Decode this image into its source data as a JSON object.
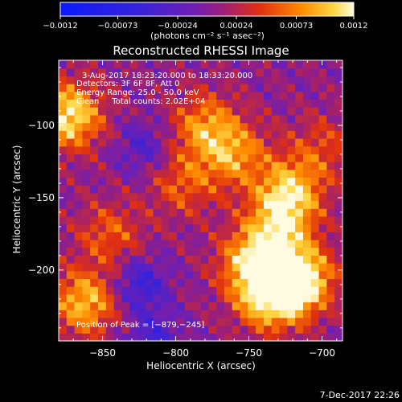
{
  "chart_data": {
    "type": "heatmap",
    "title": "Reconstructed RHESSI Image",
    "xlabel": "Heliocentric X (arcsec)",
    "ylabel": "Heliocentric Y (arcsec)",
    "xlim": [
      -880,
      -686
    ],
    "ylim": [
      -249,
      -55
    ],
    "x_ticks": [
      -850,
      -800,
      -750,
      -700
    ],
    "x_tick_labels": [
      "−850",
      "−800",
      "−750",
      "−700"
    ],
    "y_ticks": [
      -100,
      -150,
      -200
    ],
    "y_tick_labels": [
      "−100",
      "−150",
      "−200"
    ],
    "colorbar": {
      "range": [
        -0.0012,
        0.0012
      ],
      "ticks": [
        -0.0012,
        -0.00073,
        -0.00024,
        0.00024,
        0.00073,
        0.0012
      ],
      "tick_labels": [
        "−0.0012",
        "−0.00073",
        "−0.00024",
        "0.00024",
        "0.00073",
        "0.0012"
      ],
      "units_label": "(photons cm⁻² s⁻¹ asec⁻²)",
      "colormap": "RHESSI blue-purple-red-yellow"
    },
    "info_lines": [
      "3-Aug-2017 18:23:20.000 to 18:33:20.000",
      "Detectors: 3F 6F 8F, Att 0",
      "Energy Range: 25.0 - 50.0 keV",
      "Clean     Total counts: 2.02E+04"
    ],
    "peak_label": "Position of Peak = [−879,−245]",
    "image_features": [
      {
        "x": -873,
        "y": -93,
        "value": 0.0011
      },
      {
        "x": -715,
        "y": -206,
        "value": 0.0012
      },
      {
        "x": -735,
        "y": -218,
        "value": 0.0011
      },
      {
        "x": -748,
        "y": -195,
        "value": 0.0009
      },
      {
        "x": -730,
        "y": -170,
        "value": 0.0008
      },
      {
        "x": -722,
        "y": -145,
        "value": 0.0009
      },
      {
        "x": -760,
        "y": -120,
        "value": 0.0007
      },
      {
        "x": -780,
        "y": -100,
        "value": 0.0007
      },
      {
        "x": -795,
        "y": -140,
        "value": 0.0005
      },
      {
        "x": -845,
        "y": -175,
        "value": 0.0005
      },
      {
        "x": -862,
        "y": -222,
        "value": 0.0009
      },
      {
        "x": -700,
        "y": -115,
        "value": 0.0004
      },
      {
        "x": -825,
        "y": -210,
        "value": -0.0006
      },
      {
        "x": -822,
        "y": -115,
        "value": -0.0004
      },
      {
        "x": -815,
        "y": -248,
        "value": -0.0005
      }
    ]
  },
  "footer": {
    "timestamp": "7-Dec-2017 22:26"
  }
}
